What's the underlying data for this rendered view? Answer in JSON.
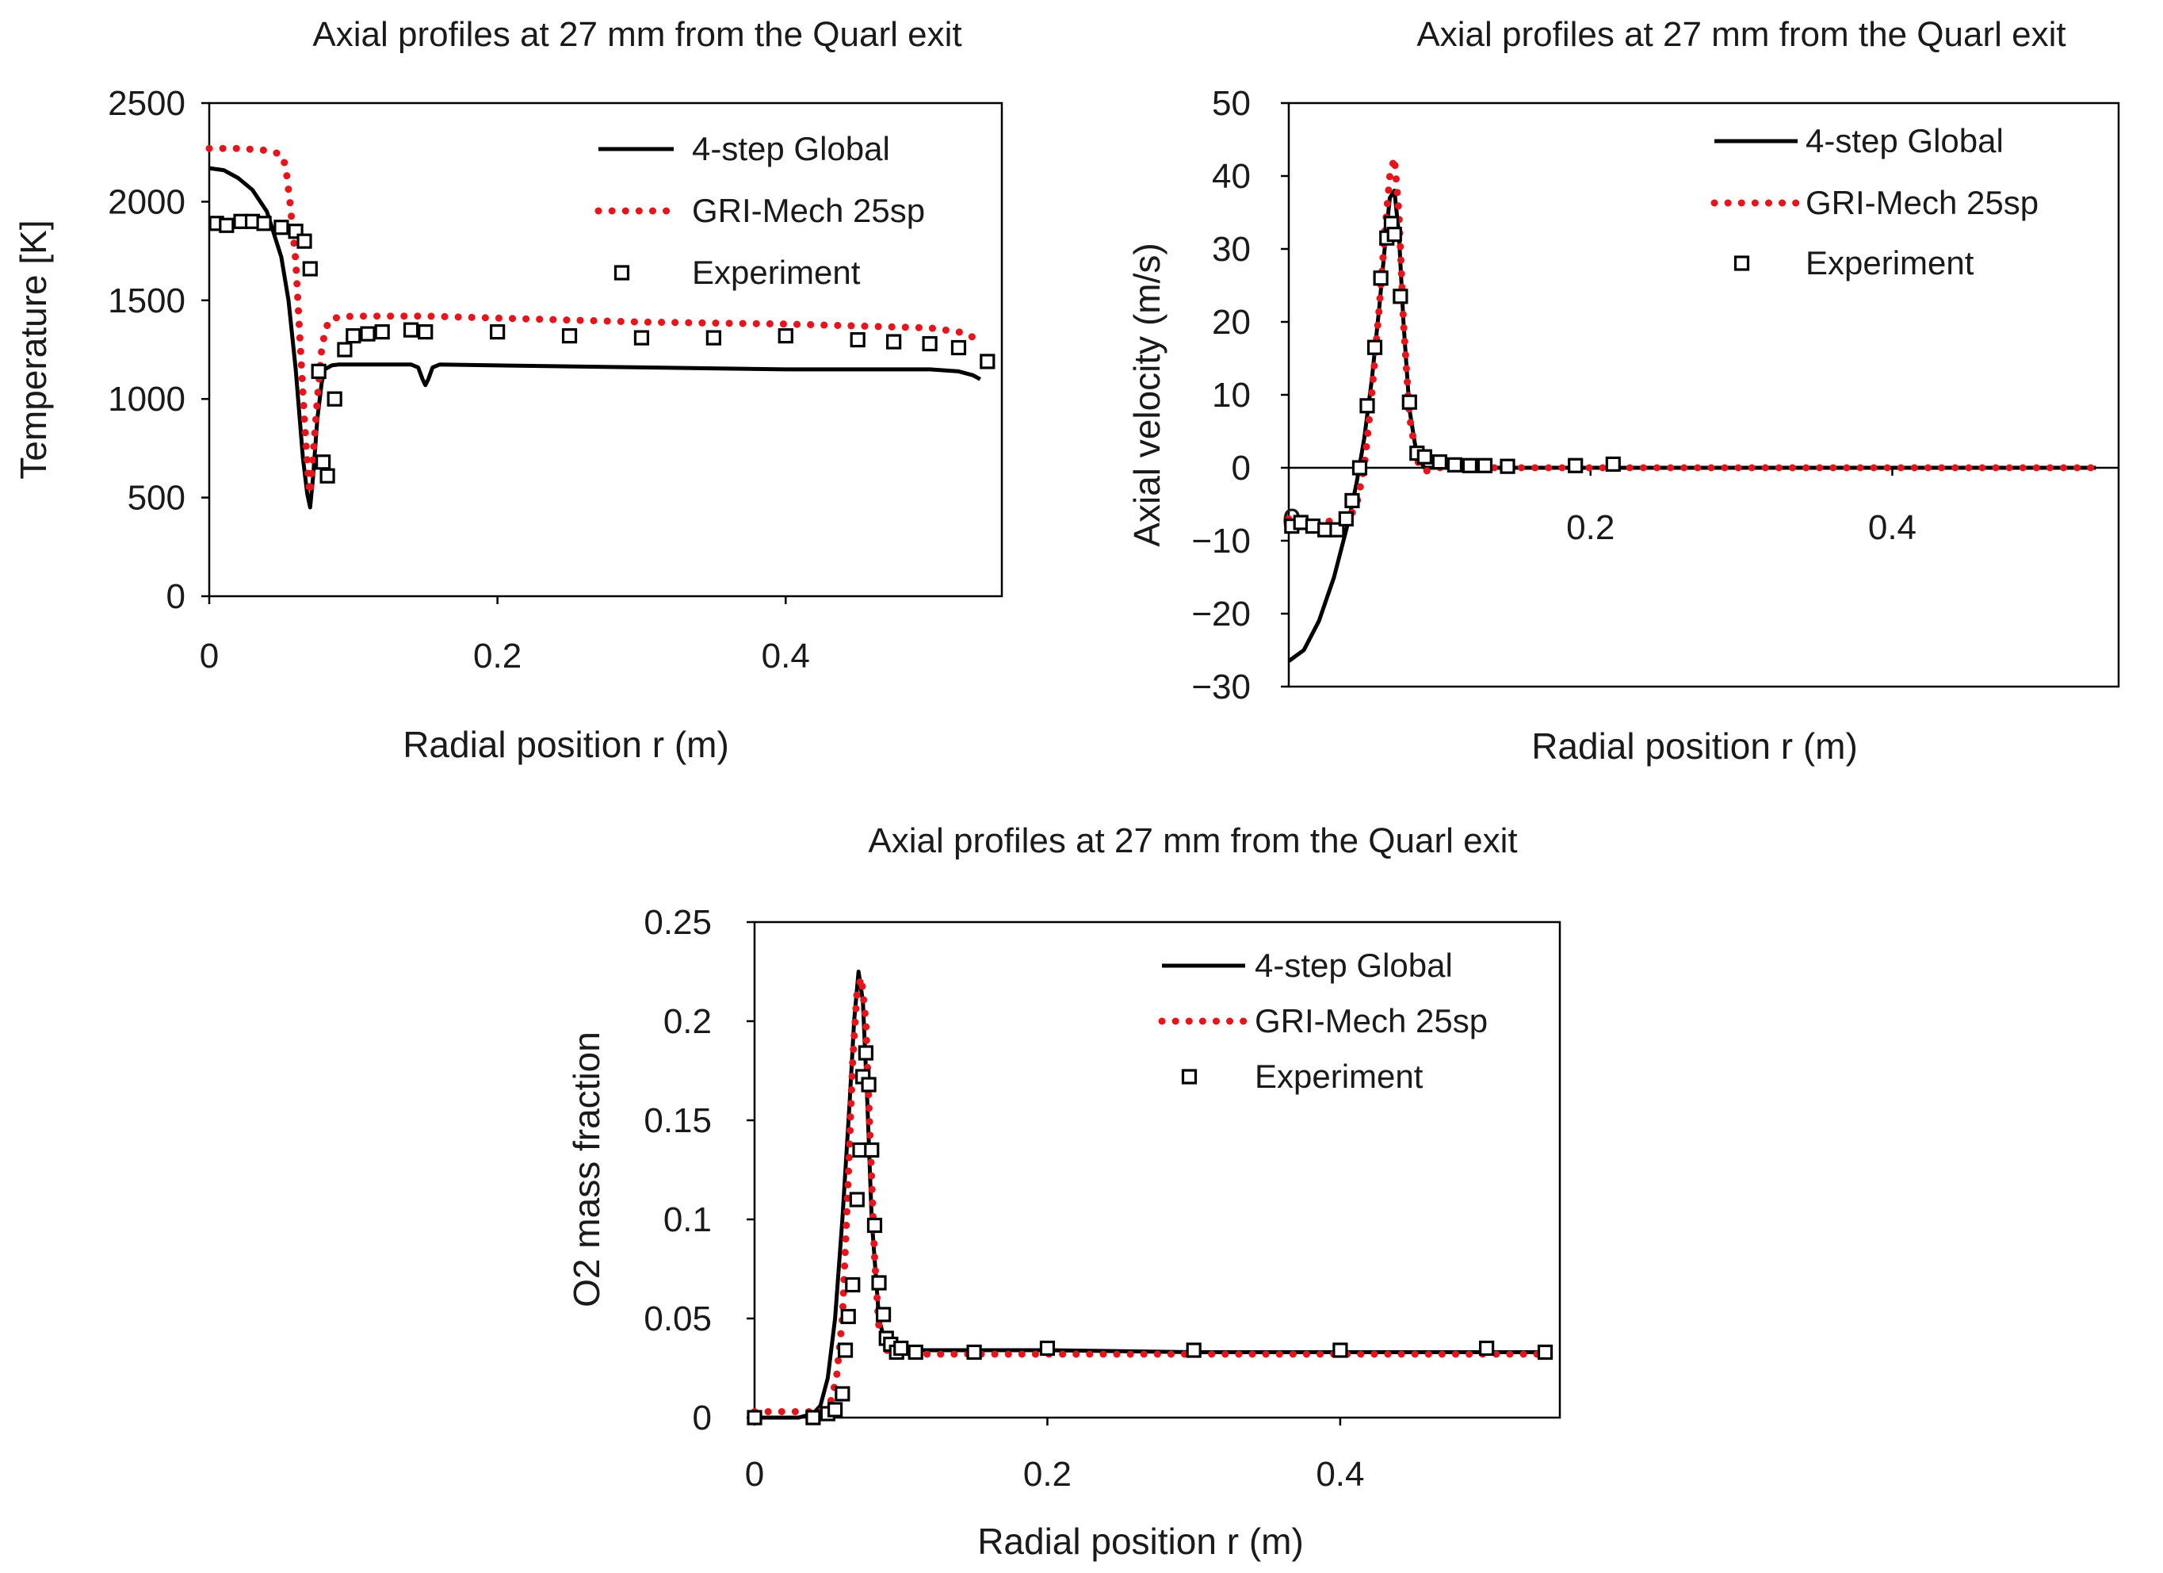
{
  "chart_data": [
    {
      "type": "line",
      "title": "Axial profiles at 27 mm from the Quarl exit",
      "xlabel": "Radial position r (m)",
      "ylabel": "Temperature  [K]",
      "xlim": [
        0,
        0.55
      ],
      "ylim": [
        0,
        2500
      ],
      "xticks": [
        0,
        0.2,
        0.4
      ],
      "yticks": [
        0,
        500,
        1000,
        1500,
        2000,
        2500
      ],
      "xtick_labels": [
        "0",
        "0.2",
        "0.4"
      ],
      "ytick_labels": [
        "0",
        "500",
        "1000",
        "1500",
        "2000",
        "2500"
      ],
      "legend_position": "top-right",
      "series": [
        {
          "name": "4-step Global",
          "style": "solid",
          "color": "#000000",
          "x": [
            0,
            0.01,
            0.02,
            0.03,
            0.04,
            0.05,
            0.055,
            0.06,
            0.065,
            0.068,
            0.07,
            0.072,
            0.075,
            0.078,
            0.08,
            0.085,
            0.09,
            0.1,
            0.12,
            0.14,
            0.145,
            0.148,
            0.15,
            0.152,
            0.155,
            0.16,
            0.2,
            0.3,
            0.4,
            0.5,
            0.52,
            0.53,
            0.535
          ],
          "y": [
            2170,
            2160,
            2120,
            2060,
            1950,
            1720,
            1500,
            1150,
            700,
            520,
            450,
            600,
            900,
            1080,
            1150,
            1170,
            1175,
            1175,
            1175,
            1175,
            1160,
            1100,
            1070,
            1100,
            1160,
            1175,
            1170,
            1160,
            1150,
            1150,
            1140,
            1120,
            1100
          ]
        },
        {
          "name": "GRI-Mech 25sp",
          "style": "dotted",
          "color": "#e8141b",
          "x": [
            0,
            0.02,
            0.04,
            0.05,
            0.053,
            0.056,
            0.06,
            0.063,
            0.066,
            0.069,
            0.07,
            0.072,
            0.075,
            0.078,
            0.08,
            0.083,
            0.09,
            0.1,
            0.15,
            0.2,
            0.3,
            0.4,
            0.5,
            0.52,
            0.535
          ],
          "y": [
            2270,
            2270,
            2260,
            2240,
            2180,
            2000,
            1700,
            1300,
            900,
            570,
            520,
            700,
            1000,
            1250,
            1330,
            1400,
            1415,
            1420,
            1420,
            1410,
            1390,
            1380,
            1360,
            1340,
            1300
          ]
        },
        {
          "name": "Experiment",
          "style": "marker-square",
          "color": "#000000",
          "x": [
            0.005,
            0.012,
            0.022,
            0.03,
            0.038,
            0.05,
            0.06,
            0.066,
            0.07,
            0.076,
            0.079,
            0.082,
            0.087,
            0.094,
            0.1,
            0.11,
            0.12,
            0.14,
            0.15,
            0.2,
            0.25,
            0.3,
            0.35,
            0.4,
            0.45,
            0.475,
            0.5,
            0.52,
            0.54
          ],
          "y": [
            1890,
            1880,
            1900,
            1900,
            1890,
            1870,
            1850,
            1800,
            1660,
            1140,
            680,
            610,
            1000,
            1250,
            1320,
            1330,
            1340,
            1350,
            1340,
            1340,
            1320,
            1310,
            1310,
            1320,
            1300,
            1290,
            1280,
            1260,
            1190
          ]
        }
      ]
    },
    {
      "type": "line",
      "title": "Axial profiles at 27 mm from the Quarl exit",
      "xlabel": "Radial position r (m)",
      "ylabel": "Axial velocity (m/s)",
      "xlim": [
        0,
        0.55
      ],
      "ylim": [
        -30,
        50
      ],
      "xticks": [
        0.2,
        0.4
      ],
      "yticks": [
        -30,
        -20,
        -10,
        0,
        10,
        20,
        30,
        40,
        50
      ],
      "xtick_labels": [
        "0.2",
        "0.4"
      ],
      "ytick_labels": [
        "−30",
        "−20",
        "−10",
        "0",
        "10",
        "20",
        "30",
        "40",
        "50"
      ],
      "extra_labels": [
        "0"
      ],
      "legend_position": "top-right",
      "series": [
        {
          "name": "4-step Global",
          "style": "solid",
          "color": "#000000",
          "x": [
            0,
            0.01,
            0.02,
            0.03,
            0.04,
            0.045,
            0.05,
            0.055,
            0.06,
            0.064,
            0.067,
            0.07,
            0.073,
            0.076,
            0.08,
            0.085,
            0.09,
            0.1,
            0.2,
            0.3,
            0.4,
            0.5,
            0.535
          ],
          "y": [
            -26.5,
            -25,
            -21,
            -15,
            -7,
            -2,
            4,
            12,
            22,
            31,
            37,
            38,
            32,
            20,
            8,
            1.5,
            0,
            0,
            0,
            0,
            0,
            0,
            0
          ]
        },
        {
          "name": "GRI-Mech 25sp",
          "style": "dotted",
          "color": "#e8141b",
          "x": [
            0,
            0.02,
            0.04,
            0.045,
            0.05,
            0.055,
            0.06,
            0.064,
            0.067,
            0.07,
            0.073,
            0.076,
            0.08,
            0.085,
            0.09,
            0.1,
            0.2,
            0.3,
            0.4,
            0.5,
            0.535
          ],
          "y": [
            -7,
            -7.5,
            -7,
            -5,
            0,
            10,
            22,
            33,
            40,
            42.5,
            35,
            20,
            7,
            1,
            -0.5,
            0,
            0,
            0,
            0,
            0,
            0
          ]
        },
        {
          "name": "Experiment",
          "style": "marker-square",
          "color": "#000000",
          "x": [
            0.002,
            0.008,
            0.016,
            0.024,
            0.032,
            0.038,
            0.042,
            0.047,
            0.052,
            0.057,
            0.061,
            0.065,
            0.068,
            0.07,
            0.074,
            0.08,
            0.085,
            0.09,
            0.1,
            0.11,
            0.12,
            0.13,
            0.145,
            0.19,
            0.215
          ],
          "y": [
            -8,
            -7.5,
            -8,
            -8.5,
            -8.5,
            -7,
            -4.5,
            0,
            8.5,
            16.5,
            26,
            31.5,
            33.5,
            32,
            23.5,
            9,
            2,
            1.5,
            0.8,
            0.4,
            0.3,
            0.3,
            0.2,
            0.3,
            0.5
          ]
        }
      ]
    },
    {
      "type": "line",
      "title": "Axial profiles at 27 mm from the Quarl exit",
      "xlabel": "Radial position r (m)",
      "ylabel": "O2 mass fraction",
      "xlim": [
        0,
        0.55
      ],
      "ylim": [
        0,
        0.25
      ],
      "xticks": [
        0,
        0.2,
        0.4
      ],
      "yticks": [
        0,
        0.05,
        0.1,
        0.15,
        0.2,
        0.25
      ],
      "xtick_labels": [
        "0",
        "0.2",
        "0.4"
      ],
      "ytick_labels": [
        "0",
        "0.05",
        "0.1",
        "0.15",
        "0.2",
        "0.25"
      ],
      "legend_position": "top-right",
      "series": [
        {
          "name": "4-step Global",
          "style": "solid",
          "color": "#000000",
          "x": [
            0,
            0.03,
            0.04,
            0.045,
            0.05,
            0.055,
            0.06,
            0.065,
            0.068,
            0.071,
            0.074,
            0.077,
            0.08,
            0.085,
            0.09,
            0.1,
            0.15,
            0.2,
            0.3,
            0.4,
            0.5,
            0.54
          ],
          "y": [
            0,
            0,
            0.002,
            0.006,
            0.02,
            0.05,
            0.1,
            0.16,
            0.2,
            0.225,
            0.21,
            0.16,
            0.1,
            0.05,
            0.035,
            0.034,
            0.034,
            0.034,
            0.033,
            0.033,
            0.033,
            0.033
          ]
        },
        {
          "name": "GRI-Mech 25sp",
          "style": "dotted",
          "color": "#e8141b",
          "x": [
            0,
            0.03,
            0.045,
            0.052,
            0.056,
            0.06,
            0.064,
            0.067,
            0.07,
            0.073,
            0.076,
            0.079,
            0.082,
            0.085,
            0.09,
            0.1,
            0.2,
            0.3,
            0.4,
            0.5,
            0.54
          ],
          "y": [
            0.003,
            0.003,
            0.003,
            0.008,
            0.02,
            0.05,
            0.12,
            0.18,
            0.215,
            0.222,
            0.2,
            0.14,
            0.08,
            0.045,
            0.034,
            0.032,
            0.032,
            0.032,
            0.032,
            0.032,
            0.032
          ]
        },
        {
          "name": "Experiment",
          "style": "marker-square",
          "color": "#000000",
          "x": [
            0,
            0.04,
            0.05,
            0.055,
            0.06,
            0.062,
            0.064,
            0.067,
            0.07,
            0.072,
            0.074,
            0.076,
            0.078,
            0.08,
            0.082,
            0.085,
            0.088,
            0.09,
            0.093,
            0.097,
            0.1,
            0.11,
            0.15,
            0.2,
            0.3,
            0.4,
            0.5,
            0.54
          ],
          "y": [
            0,
            0,
            0.002,
            0.004,
            0.012,
            0.034,
            0.051,
            0.067,
            0.11,
            0.135,
            0.172,
            0.184,
            0.168,
            0.135,
            0.097,
            0.068,
            0.052,
            0.04,
            0.037,
            0.033,
            0.035,
            0.033,
            0.033,
            0.035,
            0.034,
            0.034,
            0.035,
            0.033
          ]
        }
      ]
    }
  ]
}
